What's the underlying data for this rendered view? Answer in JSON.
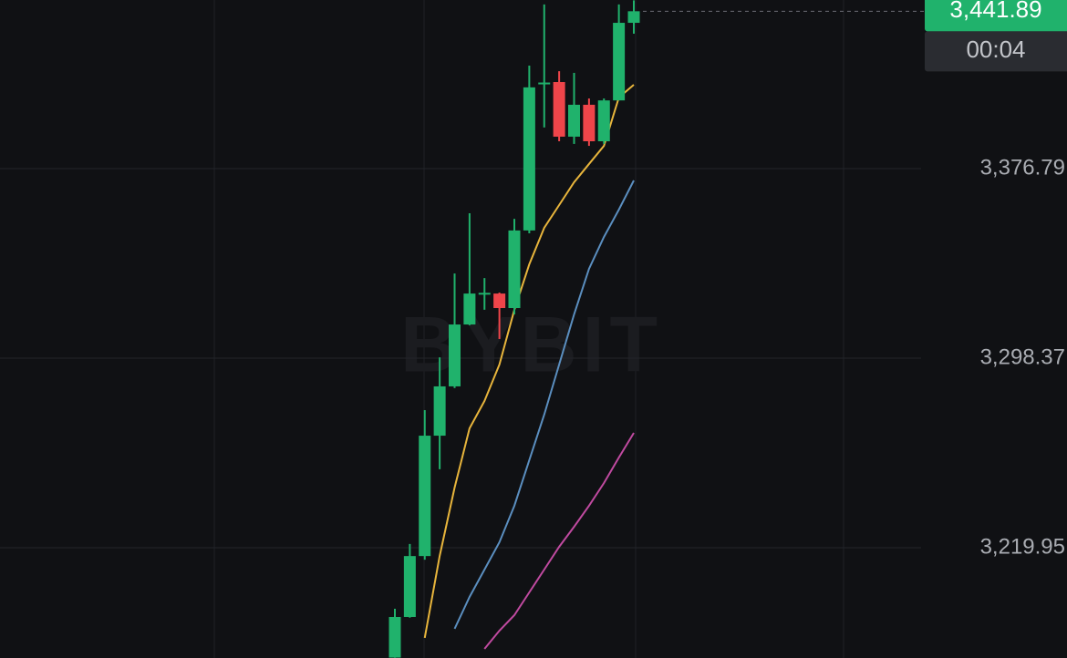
{
  "chart_data": {
    "type": "candlestick",
    "watermark": "BYBIT",
    "categories": [
      null,
      null,
      null,
      null,
      null,
      null,
      null,
      null,
      null,
      null,
      null,
      null,
      null,
      null,
      null,
      null,
      null
    ],
    "open": [
      3174.5,
      3191.3,
      3216.5,
      3266.3,
      3286.7,
      3312.3,
      3324.8,
      3325.1,
      3319.1,
      3351.2,
      3412.2,
      3412.6,
      3390.0,
      3403.2,
      3388.1,
      3405.0,
      3437.1
    ],
    "high": [
      3194.7,
      3221.5,
      3276.9,
      3298.7,
      3333.4,
      3358.3,
      3331.5,
      3325.5,
      3356.0,
      3419.4,
      3444.7,
      3417.1,
      3416.4,
      3405.8,
      3405.8,
      3444.7,
      3446.4
    ],
    "low": [
      3174.4,
      3191.0,
      3215.0,
      3252.4,
      3286.0,
      3312.0,
      3318.4,
      3306.3,
      3316.5,
      3350.0,
      3393.8,
      3388.1,
      3387.0,
      3386.2,
      3387.0,
      3405.0,
      3432.6
    ],
    "close": [
      3191.3,
      3216.5,
      3266.3,
      3286.7,
      3312.3,
      3325.1,
      3325.4,
      3319.1,
      3351.2,
      3410.4,
      3412.4,
      3390.0,
      3403.2,
      3388.1,
      3405.0,
      3437.1,
      3441.89
    ],
    "up_color": "#20b26c",
    "down_color": "#ef454a",
    "lines": [
      {
        "color": "#e8b53c",
        "values": [
          null,
          null,
          3182.63,
          3216.56,
          3244.82,
          3269.33,
          3280.65,
          3295.73,
          3318.35,
          3337.2,
          3352.28,
          3361.71,
          3371.14,
          3378.7,
          3386.22,
          3406.2,
          3411.48
        ]
      },
      {
        "color": "#5b8fc0",
        "values": [
          null,
          null,
          null,
          null,
          3186.4,
          3199.59,
          3210.9,
          3222.22,
          3237.3,
          3256.15,
          3275.0,
          3295.73,
          3316.47,
          3335.32,
          3348.52,
          3359.83,
          3371.89
        ]
      },
      {
        "color": "#c04aa0",
        "values": [
          null,
          null,
          null,
          null,
          null,
          null,
          3178.1,
          3185.64,
          3192.05,
          3201.48,
          3210.9,
          3220.33,
          3228.62,
          3237.3,
          3246.72,
          3257.28,
          3267.46
        ]
      }
    ],
    "ylim": [
      3174.33,
      3446.54
    ],
    "yticks": [
      {
        "value": 3219.95,
        "label": "3,219.95"
      },
      {
        "value": 3298.37,
        "label": "3,298.37"
      },
      {
        "value": 3376.79,
        "label": "3,376.79"
      }
    ],
    "grid": true,
    "last_price": {
      "value": 3441.89,
      "label": "3,441.89"
    },
    "countdown": "00:04"
  }
}
